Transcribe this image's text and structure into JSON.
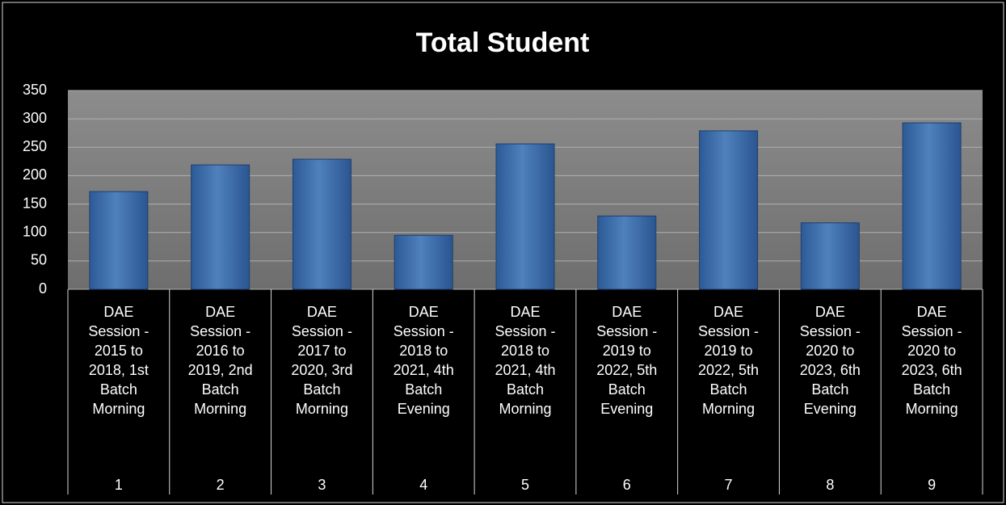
{
  "chart_data": {
    "type": "bar",
    "title": "Total Student",
    "categories": [
      "DAE Session - 2015 to 2018, 1st Batch Morning",
      "DAE Session - 2016 to 2019, 2nd Batch Morning",
      "DAE Session - 2017 to 2020, 3rd Batch Morning",
      "DAE Session - 2018 to 2021, 4th Batch Evening",
      "DAE Session - 2018 to 2021, 4th Batch Morning",
      "DAE Session - 2019 to 2022, 5th Batch Evening",
      "DAE Session - 2019 to 2022, 5th Batch Morning",
      "DAE Session - 2020 to 2023, 6th Batch Evening",
      "DAE Session - 2020 to 2023, 6th Batch Morning"
    ],
    "category_numbers": [
      "1",
      "2",
      "3",
      "4",
      "5",
      "6",
      "7",
      "8",
      "9"
    ],
    "values": [
      172,
      219,
      229,
      95,
      256,
      129,
      279,
      117,
      293
    ],
    "color": "#4f81bd",
    "ylim": [
      0,
      350
    ],
    "yticks": [
      0,
      50,
      100,
      150,
      200,
      250,
      300,
      350
    ],
    "grid": true
  }
}
